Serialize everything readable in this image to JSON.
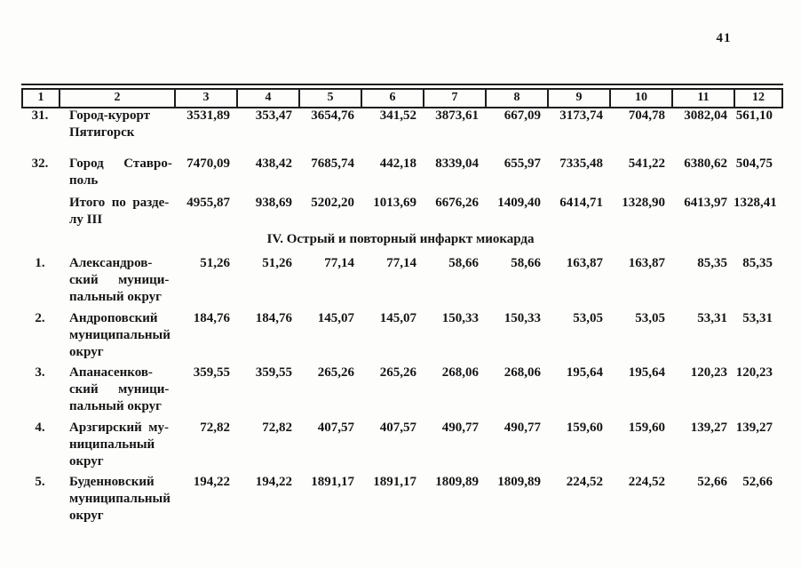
{
  "page_number": "41",
  "table": {
    "header_columns": [
      "1",
      "2",
      "3",
      "4",
      "5",
      "6",
      "7",
      "8",
      "9",
      "10",
      "11",
      "12"
    ],
    "section_iii": {
      "rows": [
        {
          "num": "31.",
          "label": "Город-курорт\nПятигорск",
          "values": [
            "3531,89",
            "353,47",
            "3654,76",
            "341,52",
            "3873,61",
            "667,09",
            "3173,74",
            "704,78",
            "3082,04",
            "561,10"
          ]
        },
        {
          "num": "32.",
          "label": "Город      Ставро-\nполь",
          "values": [
            "7470,09",
            "438,42",
            "7685,74",
            "442,18",
            "8339,04",
            "655,97",
            "7335,48",
            "541,22",
            "6380,62",
            "504,75"
          ]
        },
        {
          "num": "",
          "label": "Итого  по  разде-\nлу III",
          "values": [
            "4955,87",
            "938,69",
            "5202,20",
            "1013,69",
            "6676,26",
            "1409,40",
            "6414,71",
            "1328,90",
            "6413,97",
            "1328,41"
          ]
        }
      ]
    },
    "section_iv": {
      "title": "IV. Острый и повторный инфаркт миокарда",
      "rows": [
        {
          "num": "1.",
          "label": "Александров-\nский      муници-\nпальный округ",
          "values": [
            "51,26",
            "51,26",
            "77,14",
            "77,14",
            "58,66",
            "58,66",
            "163,87",
            "163,87",
            "85,35",
            "85,35"
          ]
        },
        {
          "num": "2.",
          "label": "Андроповский\nмуниципальный\nокруг",
          "values": [
            "184,76",
            "184,76",
            "145,07",
            "145,07",
            "150,33",
            "150,33",
            "53,05",
            "53,05",
            "53,31",
            "53,31"
          ]
        },
        {
          "num": "3.",
          "label": "Апанасенков-\nский      муници-\nпальный округ",
          "values": [
            "359,55",
            "359,55",
            "265,26",
            "265,26",
            "268,06",
            "268,06",
            "195,64",
            "195,64",
            "120,23",
            "120,23"
          ]
        },
        {
          "num": "4.",
          "label": "Арзгирский  му-\nниципальный\nокруг",
          "values": [
            "72,82",
            "72,82",
            "407,57",
            "407,57",
            "490,77",
            "490,77",
            "159,60",
            "159,60",
            "139,27",
            "139,27"
          ]
        },
        {
          "num": "5.",
          "label": "Буденновский\nмуниципальный\nокруг",
          "values": [
            "194,22",
            "194,22",
            "1891,17",
            "1891,17",
            "1809,89",
            "1809,89",
            "224,52",
            "224,52",
            "52,66",
            "52,66"
          ]
        }
      ]
    }
  }
}
